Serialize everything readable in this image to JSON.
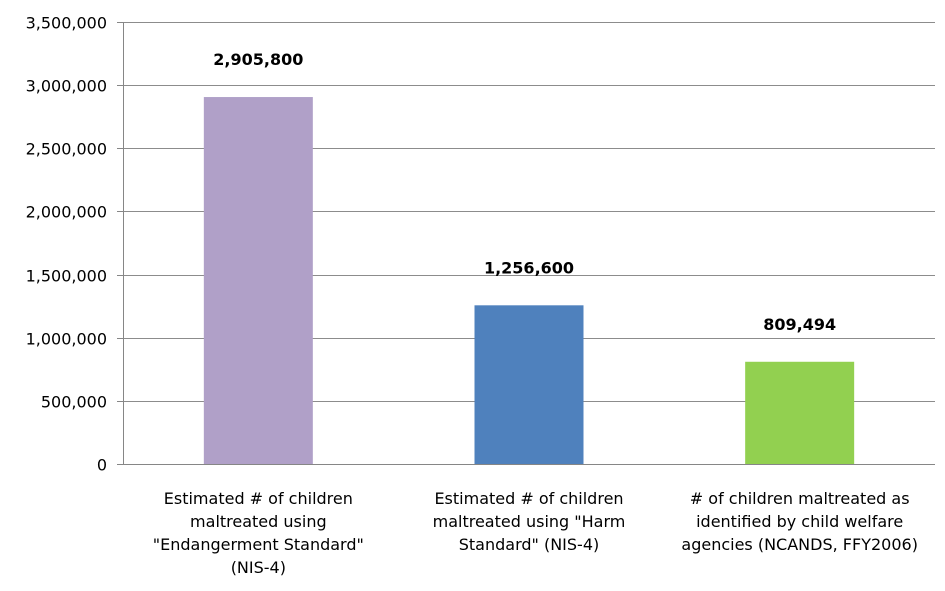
{
  "chart_data": {
    "type": "bar",
    "categories": [
      [
        "Estimated # of children",
        "maltreated using",
        "\"Endangerment Standard\"",
        "(NIS-4)"
      ],
      [
        "Estimated # of children",
        "maltreated using \"Harm",
        "Standard\" (NIS-4)"
      ],
      [
        "# of children maltreated as",
        "identified by child welfare",
        "agencies (NCANDS, FFY2006)"
      ]
    ],
    "values": [
      2905800,
      1256600,
      809494
    ],
    "value_labels": [
      "2,905,800",
      "1,256,600",
      "809,494"
    ],
    "colors": [
      "#b0a0c8",
      "#4f81bd",
      "#92d050"
    ],
    "ylim": [
      0,
      3500000
    ],
    "y_ticks": [
      0,
      500000,
      1000000,
      1500000,
      2000000,
      2500000,
      3000000,
      3500000
    ],
    "y_tick_labels": [
      "0",
      "500,000",
      "1,000,000",
      "1,500,000",
      "2,000,000",
      "2,500,000",
      "3,000,000",
      "3,500,000"
    ],
    "grid": true,
    "legend": "none"
  }
}
